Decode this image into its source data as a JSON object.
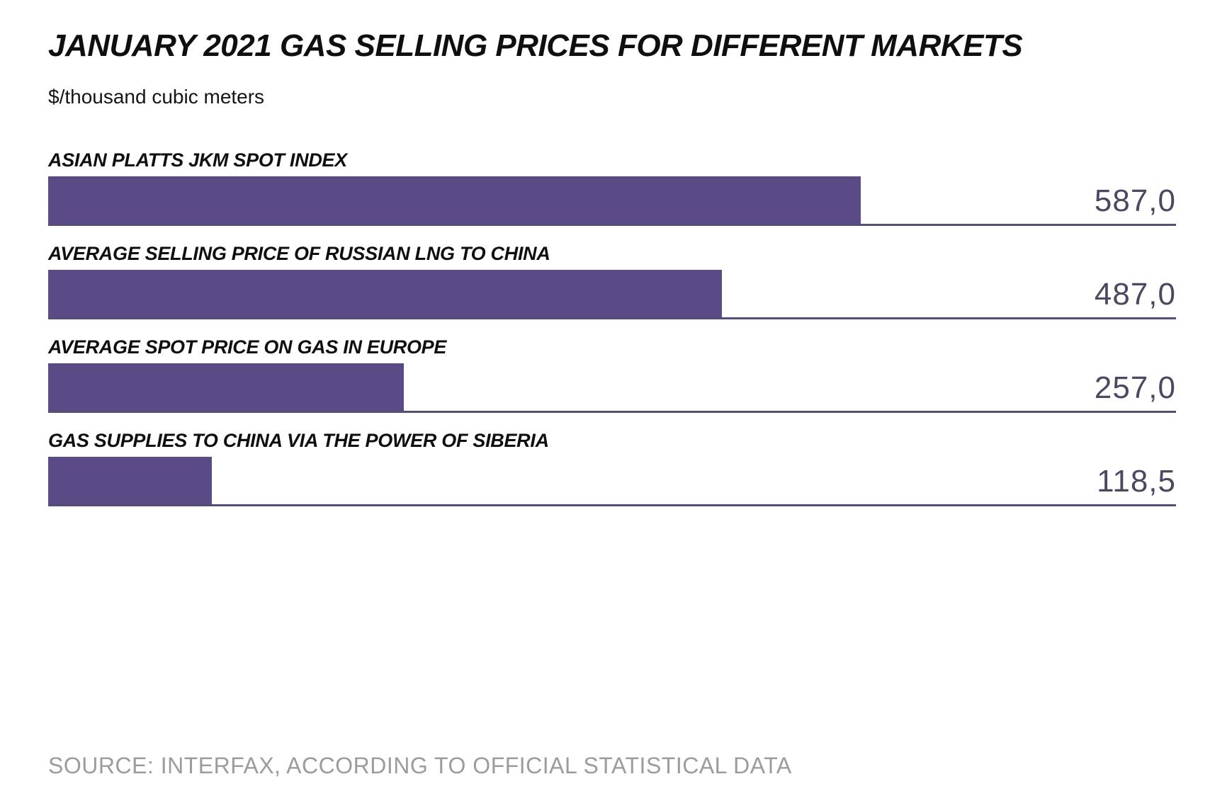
{
  "header": {
    "title": "JANUARY 2021 GAS SELLING PRICES FOR DIFFERENT MARKETS",
    "unit_label": "$/thousand cubic meters"
  },
  "chart_data": {
    "type": "bar",
    "orientation": "horizontal",
    "title": "JANUARY 2021 GAS SELLING PRICES FOR DIFFERENT MARKETS",
    "xlabel": "$/thousand cubic meters",
    "ylabel": "",
    "categories": [
      "ASIAN PLATTS JKM SPOT INDEX",
      "AVERAGE SELLING PRICE OF RUSSIAN LNG TO CHINA",
      "AVERAGE SPOT PRICE ON GAS IN EUROPE",
      "GAS SUPPLIES TO CHINA VIA THE POWER OF SIBERIA"
    ],
    "values": [
      587.0,
      487.0,
      257.0,
      118.5
    ],
    "value_labels": [
      "587,0",
      "487,0",
      "257,0",
      "118,5"
    ],
    "xlim": [
      0,
      815
    ],
    "grid": false,
    "legend": false,
    "value_label_position": "right-aligned above baseline",
    "bar_color": "#5a4b86"
  },
  "footer": {
    "source": "SOURCE: INTERFAX, ACCORDING TO OFFICIAL STATISTICAL DATA"
  },
  "colors": {
    "bar": "#5a4b86",
    "baseline": "#564e76",
    "value_text": "#4b4960",
    "title_text": "#0f0f0f",
    "source_text": "#9c9c9c",
    "background": "#ffffff"
  }
}
